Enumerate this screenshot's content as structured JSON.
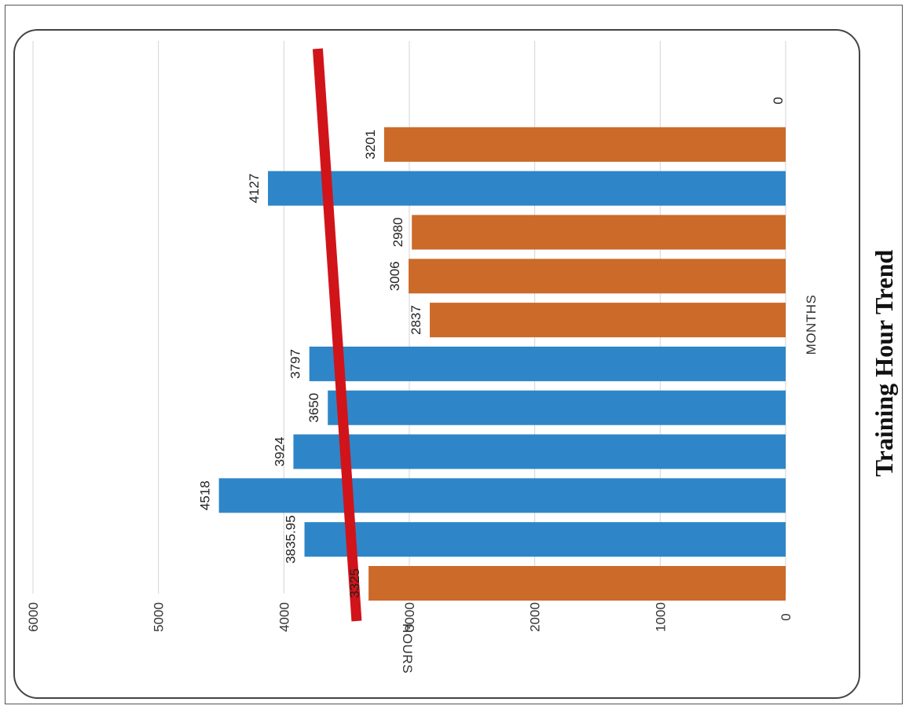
{
  "chart_data": {
    "type": "bar",
    "orientation": "horizontal",
    "title": "Training Hour Trend",
    "xlabel": "MONTHS",
    "ylabel": "HOURS",
    "ylim": [
      0,
      6000
    ],
    "yticks": [
      "0",
      "1000",
      "2000",
      "3000",
      "4000",
      "5000",
      "6000"
    ],
    "grid": true,
    "legend": "none",
    "reference_line": {
      "value": 3500,
      "color": "#D0141A"
    },
    "colors": {
      "above_target": "#2E86C8",
      "below_target": "#CC6A2A"
    },
    "bars": [
      {
        "value": 3325,
        "label": "3325",
        "color": "#CC6A2A"
      },
      {
        "value": 3835.95,
        "label": "3835.95",
        "color": "#2E86C8"
      },
      {
        "value": 4518,
        "label": "4518",
        "color": "#2E86C8"
      },
      {
        "value": 3924,
        "label": "3924",
        "color": "#2E86C8"
      },
      {
        "value": 3650,
        "label": "3650",
        "color": "#2E86C8"
      },
      {
        "value": 3797,
        "label": "3797",
        "color": "#2E86C8"
      },
      {
        "value": 2837,
        "label": "2837",
        "color": "#CC6A2A"
      },
      {
        "value": 3006,
        "label": "3006",
        "color": "#CC6A2A"
      },
      {
        "value": 2980,
        "label": "2980",
        "color": "#CC6A2A"
      },
      {
        "value": 4127,
        "label": "4127",
        "color": "#2E86C8"
      },
      {
        "value": 3201,
        "label": "3201",
        "color": "#CC6A2A"
      },
      {
        "value": 0,
        "label": "0",
        "color": "#CC6A2A"
      }
    ]
  }
}
